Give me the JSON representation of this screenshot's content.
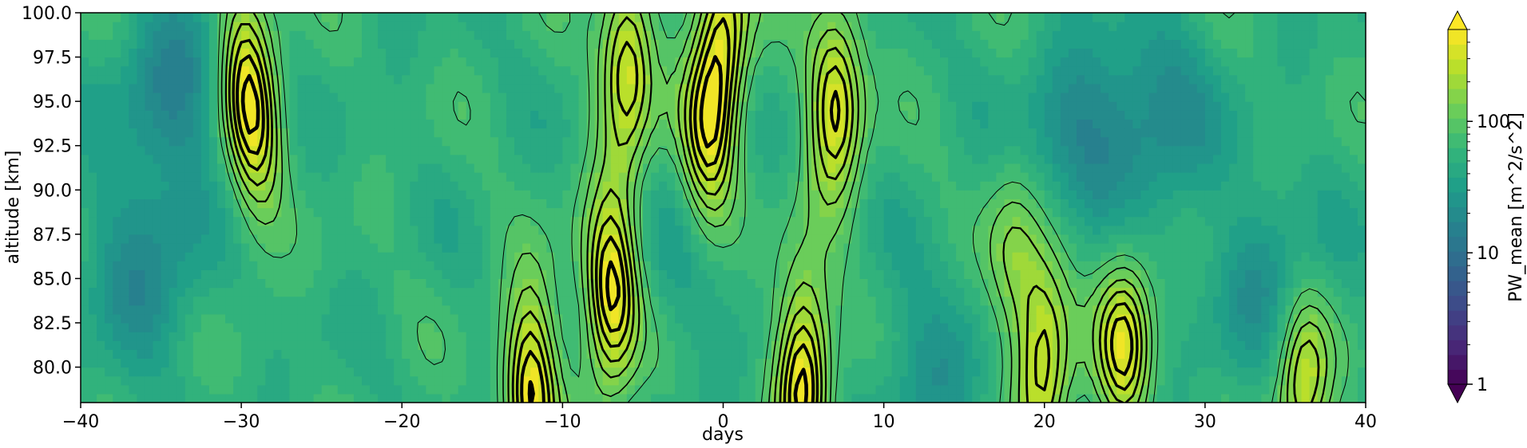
{
  "chart_data": {
    "type": "heatmap",
    "subtype": "filled-contour",
    "xlabel": "days",
    "ylabel": "altitude [km]",
    "xlim": [
      -40,
      40
    ],
    "ylim": [
      78,
      100
    ],
    "xticks": [
      -40,
      -30,
      -20,
      -10,
      0,
      10,
      20,
      30,
      40
    ],
    "xtick_labels": [
      "−40",
      "−30",
      "−20",
      "−10",
      "0",
      "10",
      "20",
      "30",
      "40"
    ],
    "yticks": [
      80.0,
      82.5,
      85.0,
      87.5,
      90.0,
      92.5,
      95.0,
      97.5,
      100.0
    ],
    "ytick_labels": [
      "80.0",
      "82.5",
      "85.0",
      "87.5",
      "90.0",
      "92.5",
      "95.0",
      "97.5",
      "100.0"
    ],
    "colorbar": {
      "label": "PW_mean [m^2/s^2]",
      "scale": "log",
      "range": [
        1,
        500
      ],
      "ticks": [
        1,
        10,
        100
      ],
      "tick_labels": [
        "1",
        "10",
        "100"
      ],
      "extend": "both",
      "colormap": "viridis"
    },
    "grid": false,
    "peaks": [
      {
        "day": -30,
        "alt": 98,
        "value": 220
      },
      {
        "day": -29,
        "alt": 93,
        "value": 200
      },
      {
        "day": -12,
        "alt": 79,
        "value": 420
      },
      {
        "day": -7,
        "alt": 84,
        "value": 470
      },
      {
        "day": -6,
        "alt": 97,
        "value": 350
      },
      {
        "day": -1,
        "alt": 92,
        "value": 230
      },
      {
        "day": 0,
        "alt": 99,
        "value": 330
      },
      {
        "day": 5,
        "alt": 80,
        "value": 500
      },
      {
        "day": 7,
        "alt": 95,
        "value": 360
      },
      {
        "day": 20,
        "alt": 80.5,
        "value": 330
      },
      {
        "day": 25,
        "alt": 81.5,
        "value": 300
      },
      {
        "day": 36,
        "alt": 79,
        "value": 300
      },
      {
        "day": 18,
        "alt": 86,
        "value": 150
      }
    ],
    "troughs": [
      {
        "day": -36,
        "alt": 86,
        "value": 18
      },
      {
        "day": -34,
        "alt": 96,
        "value": 16
      },
      {
        "day": 22,
        "alt": 93,
        "value": 20
      },
      {
        "day": 27,
        "alt": 94,
        "value": 18
      },
      {
        "day": 34,
        "alt": 85,
        "value": 22
      },
      {
        "day": -2,
        "alt": 85,
        "value": 35
      },
      {
        "day": 13,
        "alt": 80,
        "value": 25
      }
    ],
    "background_value": 55
  }
}
